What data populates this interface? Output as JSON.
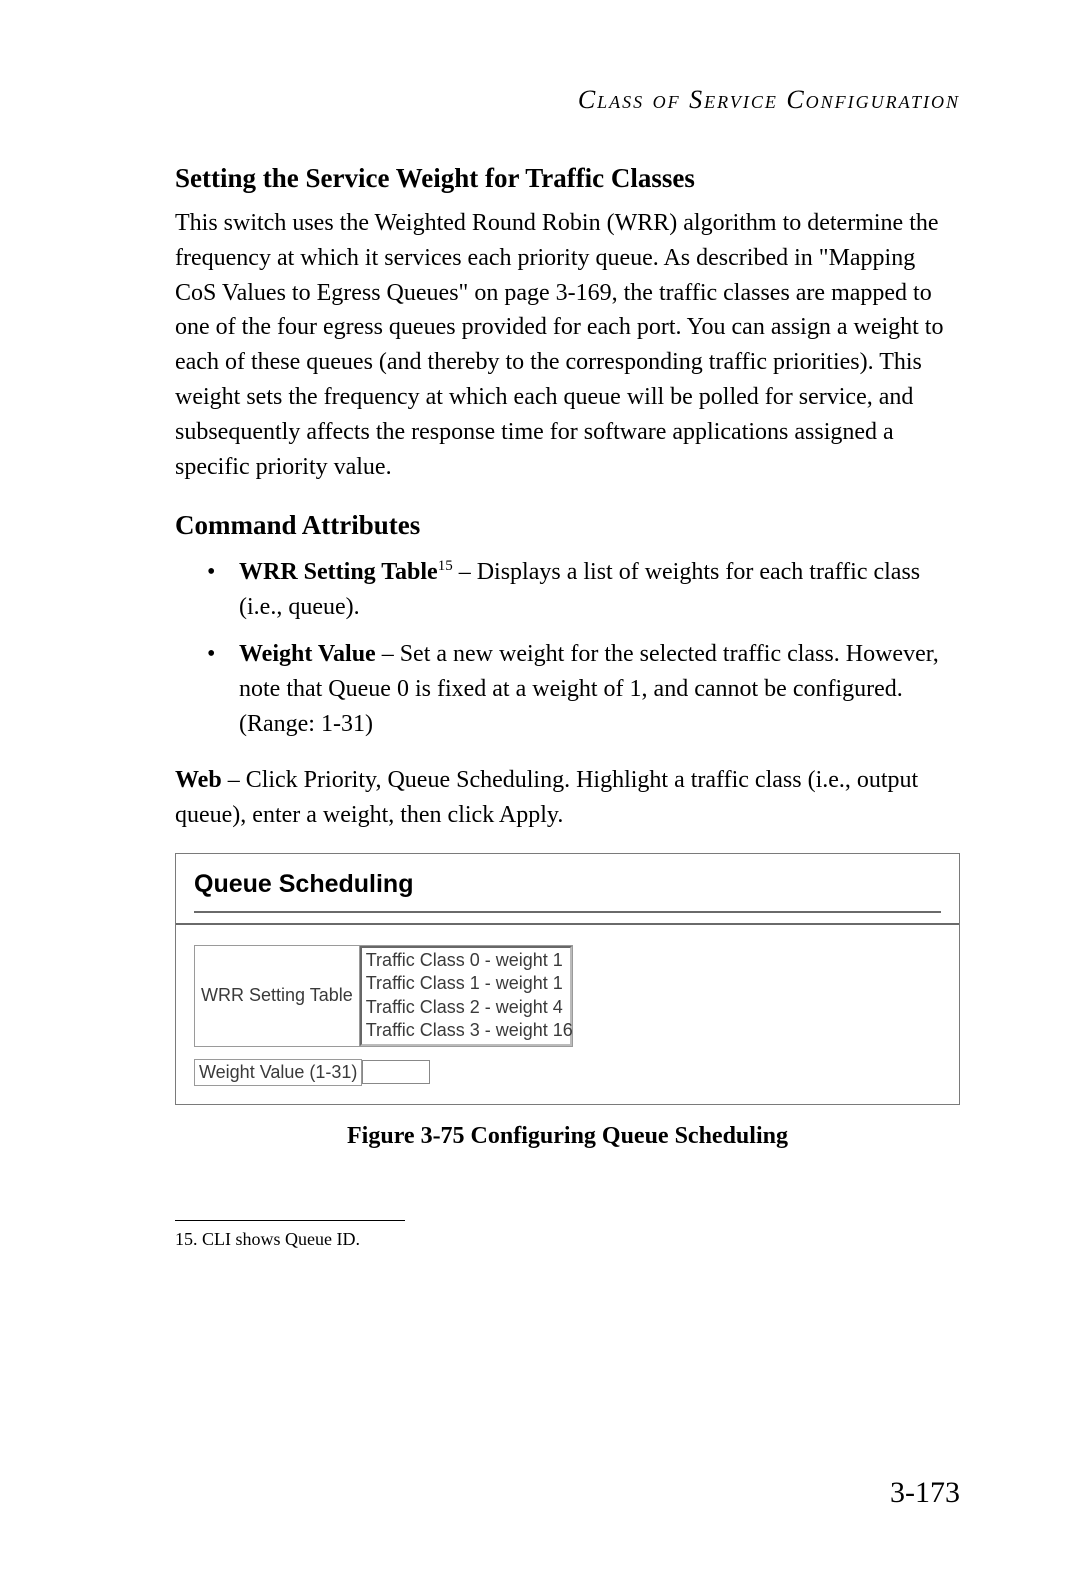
{
  "header": {
    "title": "Class of Service Configuration"
  },
  "section": {
    "heading": "Setting the Service Weight for Traffic Classes",
    "paragraph": "This switch uses the Weighted Round Robin (WRR) algorithm to determine the frequency at which it services each priority queue. As described in \"Mapping CoS Values to Egress Queues\" on page 3-169, the traffic classes are mapped to one of the four egress queues provided for each port. You can assign a weight to each of these queues (and thereby to the corresponding traffic priorities). This weight sets the frequency at which each queue will be polled for service, and subsequently affects the response time for software applications assigned a specific priority value."
  },
  "attributes": {
    "heading": "Command Attributes",
    "items": [
      {
        "lead": "WRR Setting Table",
        "sup": "15",
        "rest": " – Displays a list of weights for each traffic class (i.e., queue)."
      },
      {
        "lead": "Weight Value",
        "sup": "",
        "rest": " – Set a new weight for the selected traffic class. However, note that Queue 0 is fixed at a weight of 1, and cannot be configured. (Range: 1-31)"
      }
    ]
  },
  "web": {
    "lead": "Web",
    "rest": " – Click Priority, Queue Scheduling. Highlight a traffic class (i.e., output queue), enter a weight, then click Apply."
  },
  "figure": {
    "panel_title": "Queue Scheduling",
    "wrr_label": "WRR Setting Table",
    "wrr_options": [
      "Traffic Class 0 - weight 1",
      "Traffic Class 1 - weight 1",
      "Traffic Class 2 - weight 4",
      "Traffic Class 3 - weight 16"
    ],
    "weight_label": "Weight Value (1-31)",
    "weight_value": "",
    "caption": "Figure 3-75  Configuring Queue Scheduling"
  },
  "footnote": {
    "num": "15.",
    "text": " CLI shows Queue ID."
  },
  "page_number": "3-173"
}
